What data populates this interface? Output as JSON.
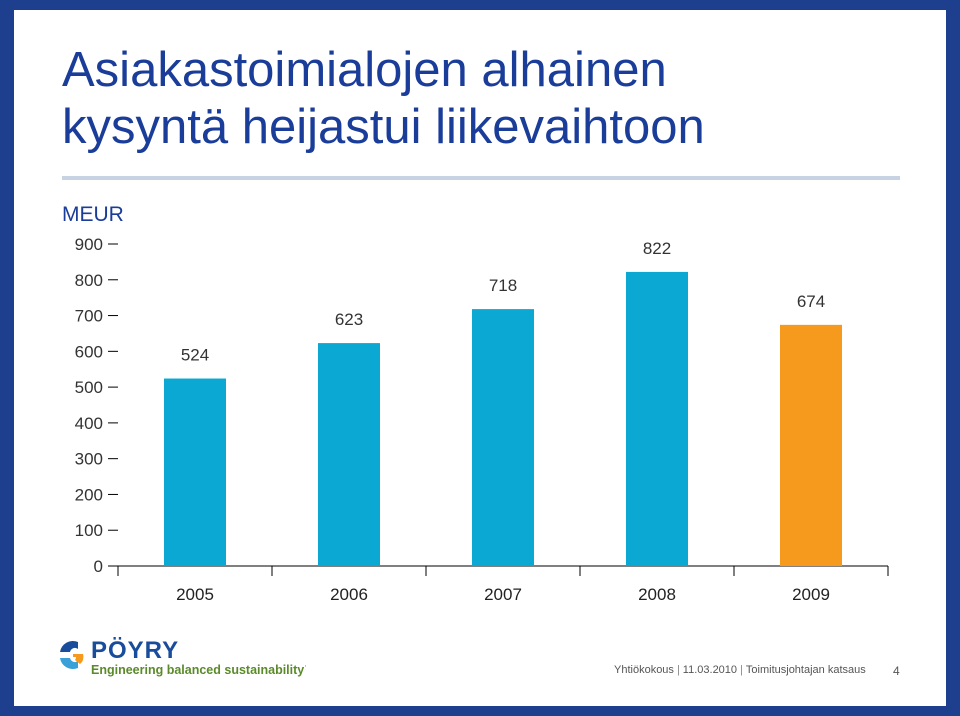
{
  "slide": {
    "title_line1": "Asiakastoimialojen alhainen",
    "title_line2": "kysyntä heijastui liikevaihtoon",
    "footer_meeting": "Yhtiökokous",
    "footer_date": "11.03.2010",
    "footer_section": "Toimitusjohtajan katsaus",
    "page_number": "4"
  },
  "logo": {
    "brand": "PÖYRY",
    "tagline": "Engineering balanced sustainability™",
    "brand_color": "#1a4c9c",
    "tagline_color": "#5a8a2a"
  },
  "chart_data": {
    "type": "bar",
    "ylabel": "MEUR",
    "categories": [
      "2005",
      "2006",
      "2007",
      "2008",
      "2009"
    ],
    "values": [
      524,
      623,
      718,
      822,
      674
    ],
    "data_labels": [
      "524",
      "623",
      "718",
      "822",
      "674"
    ],
    "yticks": [
      "0",
      "100",
      "200",
      "300",
      "400",
      "500",
      "600",
      "700",
      "800",
      "900"
    ],
    "ylim": [
      0,
      900
    ],
    "grid": false,
    "colors": [
      "#0aa8d2",
      "#0aa8d2",
      "#0aa8d2",
      "#0aa8d2",
      "#f59a1c"
    ]
  }
}
